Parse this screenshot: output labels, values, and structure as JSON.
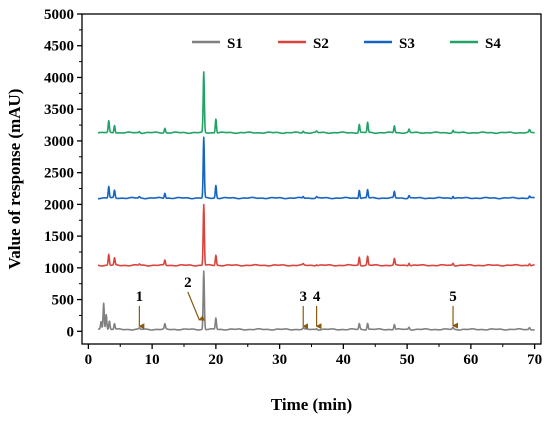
{
  "chart_data": {
    "type": "line",
    "xlabel": "Time (min)",
    "ylabel": "Value of response (mAU)",
    "xlim": [
      -1,
      71
    ],
    "ylim": [
      -200,
      5000
    ],
    "x_ticks": [
      0,
      10,
      20,
      30,
      40,
      50,
      60,
      70
    ],
    "y_ticks": [
      0,
      500,
      1000,
      1500,
      2000,
      2500,
      3000,
      3500,
      4000,
      4500,
      5000
    ],
    "legend_position": "top-right",
    "grid": false,
    "series": [
      {
        "name": "S1",
        "color": "#808080",
        "baseline": 30,
        "peaks": [
          {
            "x": 2.0,
            "h": 120
          },
          {
            "x": 2.4,
            "h": 420
          },
          {
            "x": 2.8,
            "h": 240
          },
          {
            "x": 3.3,
            "h": 130
          },
          {
            "x": 4.1,
            "h": 90
          },
          {
            "x": 8.0,
            "h": 20
          },
          {
            "x": 12.0,
            "h": 80
          },
          {
            "x": 18.1,
            "h": 920
          },
          {
            "x": 20.0,
            "h": 180
          },
          {
            "x": 33.7,
            "h": 20
          },
          {
            "x": 35.8,
            "h": 15
          },
          {
            "x": 42.5,
            "h": 90
          },
          {
            "x": 43.8,
            "h": 100
          },
          {
            "x": 48.0,
            "h": 80
          },
          {
            "x": 50.3,
            "h": 35
          },
          {
            "x": 57.2,
            "h": 30
          },
          {
            "x": 69.2,
            "h": 30
          }
        ]
      },
      {
        "name": "S2",
        "color": "#d9453d",
        "baseline": 1040,
        "peaks": [
          {
            "x": 3.2,
            "h": 170
          },
          {
            "x": 4.1,
            "h": 110
          },
          {
            "x": 8.0,
            "h": 20
          },
          {
            "x": 12.0,
            "h": 80
          },
          {
            "x": 18.1,
            "h": 960
          },
          {
            "x": 20.0,
            "h": 160
          },
          {
            "x": 33.7,
            "h": 20
          },
          {
            "x": 35.8,
            "h": 15
          },
          {
            "x": 42.5,
            "h": 130
          },
          {
            "x": 43.8,
            "h": 140
          },
          {
            "x": 48.0,
            "h": 100
          },
          {
            "x": 50.3,
            "h": 40
          },
          {
            "x": 57.2,
            "h": 35
          },
          {
            "x": 69.2,
            "h": 30
          }
        ]
      },
      {
        "name": "S3",
        "color": "#1565c0",
        "baseline": 2100,
        "peaks": [
          {
            "x": 3.2,
            "h": 180
          },
          {
            "x": 4.1,
            "h": 120
          },
          {
            "x": 8.0,
            "h": 20
          },
          {
            "x": 12.0,
            "h": 80
          },
          {
            "x": 18.1,
            "h": 950
          },
          {
            "x": 20.0,
            "h": 200
          },
          {
            "x": 33.7,
            "h": 25
          },
          {
            "x": 35.8,
            "h": 20
          },
          {
            "x": 42.5,
            "h": 130
          },
          {
            "x": 43.8,
            "h": 130
          },
          {
            "x": 48.0,
            "h": 100
          },
          {
            "x": 50.3,
            "h": 40
          },
          {
            "x": 57.2,
            "h": 35
          },
          {
            "x": 69.2,
            "h": 30
          }
        ]
      },
      {
        "name": "S4",
        "color": "#21a366",
        "baseline": 3130,
        "peaks": [
          {
            "x": 3.2,
            "h": 180
          },
          {
            "x": 4.1,
            "h": 120
          },
          {
            "x": 8.0,
            "h": 20
          },
          {
            "x": 12.0,
            "h": 70
          },
          {
            "x": 18.1,
            "h": 950
          },
          {
            "x": 20.0,
            "h": 220
          },
          {
            "x": 33.7,
            "h": 25
          },
          {
            "x": 35.8,
            "h": 20
          },
          {
            "x": 42.5,
            "h": 130
          },
          {
            "x": 43.8,
            "h": 160
          },
          {
            "x": 48.0,
            "h": 110
          },
          {
            "x": 50.3,
            "h": 50
          },
          {
            "x": 57.2,
            "h": 35
          },
          {
            "x": 69.2,
            "h": 40
          }
        ]
      }
    ],
    "annotations": [
      {
        "label": "1",
        "x": 8.0,
        "arrow_from_y": 400,
        "arrow_to_y": 80
      },
      {
        "label": "2",
        "x": 17.4,
        "arrow_from_y": 620,
        "arrow_to_y": 180
      },
      {
        "label": "3",
        "x": 33.7,
        "arrow_from_y": 400,
        "arrow_to_y": 80
      },
      {
        "label": "4",
        "x": 35.8,
        "arrow_from_y": 400,
        "arrow_to_y": 80
      },
      {
        "label": "5",
        "x": 57.2,
        "arrow_from_y": 400,
        "arrow_to_y": 90
      }
    ]
  }
}
